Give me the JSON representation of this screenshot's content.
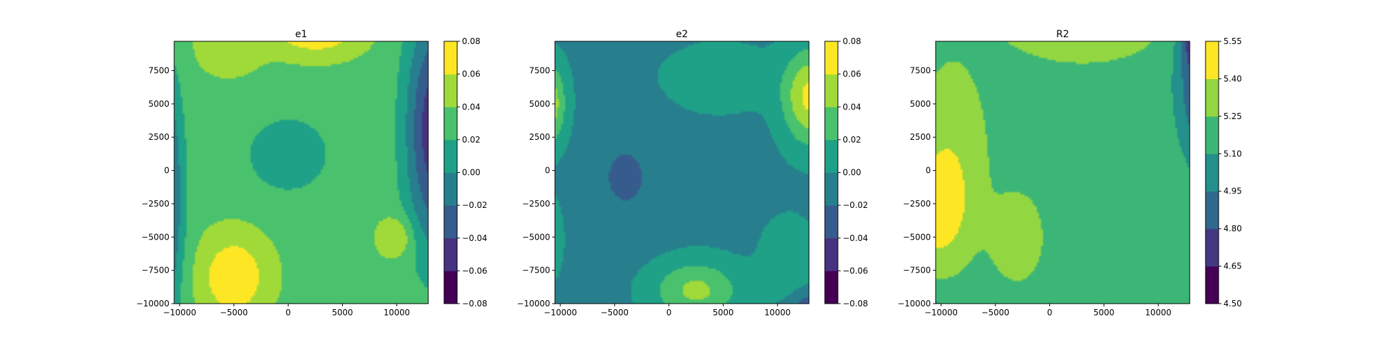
{
  "colors": {
    "background": "#ffffff",
    "axis": "#000000",
    "viridis_levels": [
      "#440154",
      "#46327e",
      "#365c8d",
      "#277f8e",
      "#1fa187",
      "#4ac16d",
      "#a0da39",
      "#fde725"
    ]
  },
  "chart_data": [
    {
      "type": "heatmap",
      "subtype": "filled-contour",
      "title": "e1",
      "xlabel": "",
      "ylabel": "",
      "xlim": [
        -10500,
        12900
      ],
      "ylim": [
        -10000,
        9700
      ],
      "xticks": [
        -10000,
        -5000,
        0,
        5000,
        10000
      ],
      "xtick_labels": [
        "−10000",
        "−5000",
        "0",
        "5000",
        "10000"
      ],
      "yticks": [
        -10000,
        -7500,
        -5000,
        -2500,
        0,
        2500,
        5000,
        7500
      ],
      "ytick_labels": [
        "−10000",
        "−7500",
        "−5000",
        "−2500",
        "0",
        "2500",
        "5000",
        "7500"
      ],
      "colorbar": {
        "levels": [
          -0.08,
          -0.06,
          -0.04,
          -0.02,
          0.0,
          0.02,
          0.04,
          0.06,
          0.08
        ],
        "tick_labels": [
          "−0.08",
          "−0.06",
          "−0.04",
          "−0.02",
          "0.00",
          "0.02",
          "0.04",
          "0.06",
          "0.08"
        ]
      },
      "field": {
        "base": 0.035,
        "features": [
          {
            "x": -5000,
            "y": -8000,
            "amp": 0.045,
            "sx": 3000,
            "sy": 3000
          },
          {
            "x": 2500,
            "y": 10500,
            "amp": 0.045,
            "sx": 4000,
            "sy": 1800
          },
          {
            "x": -5500,
            "y": 9500,
            "amp": 0.02,
            "sx": 3000,
            "sy": 2200
          },
          {
            "x": 10000,
            "y": -5000,
            "amp": 0.03,
            "sx": 1600,
            "sy": 1500
          },
          {
            "x": 0,
            "y": 1200,
            "amp": -0.032,
            "sx": 4000,
            "sy": 3000
          },
          {
            "x": 13500,
            "y": 3000,
            "amp": -0.09,
            "sx": 2700,
            "sy": 9000
          },
          {
            "x": -11500,
            "y": -2000,
            "amp": -0.08,
            "sx": 1700,
            "sy": 9000
          },
          {
            "x": 7000,
            "y": -11000,
            "amp": -0.04,
            "sx": 5500,
            "sy": 900
          }
        ]
      }
    },
    {
      "type": "heatmap",
      "subtype": "filled-contour",
      "title": "e2",
      "xlabel": "",
      "ylabel": "",
      "xlim": [
        -10500,
        12900
      ],
      "ylim": [
        -10000,
        9700
      ],
      "xticks": [
        -10000,
        -5000,
        0,
        5000,
        10000
      ],
      "xtick_labels": [
        "−10000",
        "−5000",
        "0",
        "5000",
        "10000"
      ],
      "yticks": [
        -10000,
        -7500,
        -5000,
        -2500,
        0,
        2500,
        5000,
        7500
      ],
      "ytick_labels": [
        "−10000",
        "−7500",
        "−5000",
        "−2500",
        "0",
        "2500",
        "5000",
        "7500"
      ],
      "colorbar": {
        "levels": [
          -0.08,
          -0.06,
          -0.04,
          -0.02,
          0.0,
          0.02,
          0.04,
          0.06,
          0.08
        ],
        "tick_labels": [
          "−0.08",
          "−0.06",
          "−0.04",
          "−0.02",
          "0.00",
          "0.02",
          "0.04",
          "0.06",
          "0.08"
        ]
      },
      "field": {
        "base": -0.005,
        "features": [
          {
            "x": -4000,
            "y": -500,
            "amp": -0.018,
            "sx": 3500,
            "sy": 4000
          },
          {
            "x": 2500,
            "y": -9000,
            "amp": 0.05,
            "sx": 4000,
            "sy": 2200
          },
          {
            "x": 13000,
            "y": 5500,
            "amp": 0.07,
            "sx": 2500,
            "sy": 3500
          },
          {
            "x": -11000,
            "y": 5000,
            "amp": 0.06,
            "sx": 1500,
            "sy": 3000
          },
          {
            "x": 4500,
            "y": 7000,
            "amp": 0.018,
            "sx": 5000,
            "sy": 2500
          },
          {
            "x": -11000,
            "y": -5000,
            "amp": 0.02,
            "sx": 1200,
            "sy": 3000
          },
          {
            "x": 11000,
            "y": -6500,
            "amp": 0.018,
            "sx": 2500,
            "sy": 3000
          },
          {
            "x": -2500,
            "y": 10800,
            "amp": -0.02,
            "sx": 3000,
            "sy": 1200
          },
          {
            "x": -9500,
            "y": -10800,
            "amp": -0.025,
            "sx": 2500,
            "sy": 1200
          },
          {
            "x": 13000,
            "y": -10500,
            "amp": -0.04,
            "sx": 1500,
            "sy": 1200
          }
        ]
      }
    },
    {
      "type": "heatmap",
      "subtype": "filled-contour",
      "title": "R2",
      "xlabel": "",
      "ylabel": "",
      "xlim": [
        -10500,
        12900
      ],
      "ylim": [
        -10000,
        9700
      ],
      "xticks": [
        -10000,
        -5000,
        0,
        5000,
        10000
      ],
      "xtick_labels": [
        "−10000",
        "−5000",
        "0",
        "5000",
        "10000"
      ],
      "yticks": [
        -10000,
        -7500,
        -5000,
        -2500,
        0,
        2500,
        5000,
        7500
      ],
      "ytick_labels": [
        "−10000",
        "−7500",
        "−5000",
        "−2500",
        "0",
        "2500",
        "5000",
        "7500"
      ],
      "colorbar": {
        "levels": [
          4.5,
          4.65,
          4.8,
          4.95,
          5.1,
          5.25,
          5.4,
          5.55
        ],
        "tick_labels": [
          "4.50",
          "4.65",
          "4.80",
          "4.95",
          "5.10",
          "5.25",
          "5.40",
          "5.55"
        ]
      },
      "field": {
        "base": 5.2,
        "features": [
          {
            "x": -10500,
            "y": -3000,
            "amp": 0.3,
            "sx": 2500,
            "sy": 3500
          },
          {
            "x": -9000,
            "y": 1000,
            "amp": 0.16,
            "sx": 3000,
            "sy": 6500
          },
          {
            "x": -3000,
            "y": -5000,
            "amp": 0.12,
            "sx": 2500,
            "sy": 3500
          },
          {
            "x": 3000,
            "y": 12500,
            "amp": 0.25,
            "sx": 7000,
            "sy": 3500
          },
          {
            "x": 14500,
            "y": 7000,
            "amp": -0.55,
            "sx": 2500,
            "sy": 6000
          },
          {
            "x": 13000,
            "y": 11000,
            "amp": -0.3,
            "sx": 1000,
            "sy": 2500
          },
          {
            "x": -11000,
            "y": -11000,
            "amp": -0.2,
            "sx": 3000,
            "sy": 1500
          }
        ]
      }
    }
  ]
}
